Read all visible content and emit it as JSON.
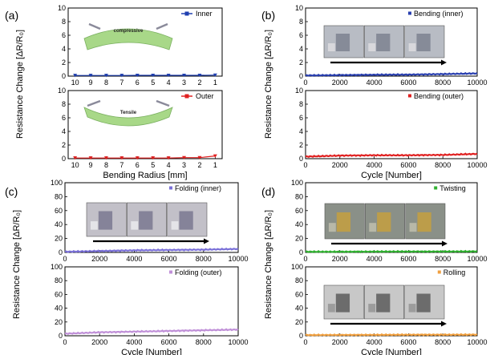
{
  "panels": [
    {
      "letter": "(a)"
    },
    {
      "letter": "(b)"
    },
    {
      "letter": "(c)"
    },
    {
      "letter": "(d)"
    }
  ],
  "inset_labels": {
    "compressive": "compressive",
    "tensile": "Tensile"
  },
  "chart_data": [
    {
      "panel": "(a)",
      "type": "line",
      "ylabel": "Resistance Change [ΔR/R₀]",
      "xlabel": "",
      "x_ticks": [
        "10",
        "9",
        "8",
        "7",
        "6",
        "5",
        "4",
        "3",
        "2",
        "1"
      ],
      "y_ticks": [
        "0",
        "2",
        "4",
        "6",
        "8",
        "10"
      ],
      "ylim": [
        0,
        10
      ],
      "series": [
        {
          "name": "Inner",
          "color": "#1f3fb0",
          "x": [
            10,
            9,
            8,
            7,
            6,
            5,
            4,
            3,
            2,
            1
          ],
          "y": [
            0.1,
            0.1,
            0.1,
            0.1,
            0.12,
            0.12,
            0.12,
            0.12,
            0.12,
            0.15
          ]
        }
      ],
      "legend": "top-right"
    },
    {
      "panel": "(a)",
      "type": "line",
      "ylabel": "",
      "xlabel": "Bending Radius [mm]",
      "x_ticks": [
        "10",
        "9",
        "8",
        "7",
        "6",
        "5",
        "4",
        "3",
        "2",
        "1"
      ],
      "y_ticks": [
        "0",
        "2",
        "4",
        "6",
        "8",
        "10"
      ],
      "ylim": [
        0,
        10
      ],
      "series": [
        {
          "name": "Outer",
          "color": "#e02020",
          "x": [
            10,
            9,
            8,
            7,
            6,
            5,
            4,
            3,
            2,
            1
          ],
          "y": [
            0.1,
            0.1,
            0.1,
            0.1,
            0.1,
            0.1,
            0.1,
            0.15,
            0.15,
            0.4
          ]
        }
      ],
      "legend": "top-right"
    },
    {
      "panel": "(b)",
      "type": "line",
      "ylabel": "Resistance Change [ΔR/R₀]",
      "xlabel": "",
      "x_ticks": [
        "0",
        "2000",
        "4000",
        "6000",
        "8000",
        "10000"
      ],
      "y_ticks": [
        "0",
        "2",
        "4",
        "6",
        "8",
        "10"
      ],
      "xlim": [
        0,
        10000
      ],
      "ylim": [
        0,
        10
      ],
      "series": [
        {
          "name": "Bending (inner)",
          "color": "#2a40b0",
          "x": [
            0,
            2000,
            4000,
            6000,
            8000,
            10000
          ],
          "y": [
            0.1,
            0.15,
            0.2,
            0.22,
            0.3,
            0.4
          ]
        }
      ],
      "legend": "top-right"
    },
    {
      "panel": "(b)",
      "type": "line",
      "ylabel": "",
      "xlabel": "Cycle [Number]",
      "x_ticks": [
        "0",
        "2000",
        "4000",
        "6000",
        "8000",
        "10000"
      ],
      "y_ticks": [
        "0",
        "2",
        "4",
        "6",
        "8",
        "10"
      ],
      "xlim": [
        0,
        10000
      ],
      "ylim": [
        0,
        10
      ],
      "series": [
        {
          "name": "Bending (outer)",
          "color": "#e02020",
          "x": [
            0,
            2000,
            4000,
            6000,
            8000,
            10000
          ],
          "y": [
            0.3,
            0.45,
            0.5,
            0.5,
            0.55,
            0.7
          ]
        }
      ],
      "legend": "top-right"
    },
    {
      "panel": "(c)",
      "type": "line",
      "ylabel": "Resistance Change [ΔR/R₀]",
      "xlabel": "",
      "x_ticks": [
        "0",
        "2000",
        "4000",
        "6000",
        "8000",
        "10000"
      ],
      "y_ticks": [
        "0",
        "20",
        "40",
        "60",
        "80",
        "100"
      ],
      "xlim": [
        0,
        10000
      ],
      "ylim": [
        0,
        100
      ],
      "series": [
        {
          "name": "Folding (inner)",
          "color": "#7a70d8",
          "x": [
            0,
            2000,
            4000,
            6000,
            8000,
            10000
          ],
          "y": [
            1,
            2,
            3,
            3.5,
            4,
            5
          ]
        }
      ],
      "legend": "top-right"
    },
    {
      "panel": "(c)",
      "type": "line",
      "ylabel": "",
      "xlabel": "Cycle [Number]",
      "x_ticks": [
        "0",
        "2000",
        "4000",
        "6000",
        "8000",
        "10000"
      ],
      "y_ticks": [
        "0",
        "20",
        "40",
        "60",
        "80",
        "100"
      ],
      "xlim": [
        0,
        10000
      ],
      "ylim": [
        0,
        100
      ],
      "series": [
        {
          "name": "Folding (outer)",
          "color": "#c090d8",
          "x": [
            0,
            2000,
            4000,
            6000,
            8000,
            10000
          ],
          "y": [
            3,
            5,
            6,
            7,
            8,
            9
          ]
        }
      ],
      "legend": "top-right"
    },
    {
      "panel": "(d)",
      "type": "line",
      "ylabel": "Resistance Change [ΔR/R₀]",
      "xlabel": "",
      "x_ticks": [
        "0",
        "2000",
        "4000",
        "6000",
        "8000",
        "10000"
      ],
      "y_ticks": [
        "0",
        "20",
        "40",
        "60",
        "80",
        "100"
      ],
      "xlim": [
        0,
        10000
      ],
      "ylim": [
        0,
        100
      ],
      "series": [
        {
          "name": "Twisting",
          "color": "#30b030",
          "x": [
            0,
            2000,
            4000,
            6000,
            8000,
            10000
          ],
          "y": [
            1,
            1,
            1.2,
            1.3,
            1.3,
            1.5
          ]
        }
      ],
      "legend": "top-right"
    },
    {
      "panel": "(d)",
      "type": "line",
      "ylabel": "",
      "xlabel": "Cycle [Number]",
      "x_ticks": [
        "0",
        "2000",
        "4000",
        "6000",
        "8000",
        "10000"
      ],
      "y_ticks": [
        "0",
        "20",
        "40",
        "60",
        "80",
        "100"
      ],
      "xlim": [
        0,
        10000
      ],
      "ylim": [
        0,
        100
      ],
      "series": [
        {
          "name": "Rolling",
          "color": "#f0a040",
          "x": [
            0,
            2000,
            4000,
            6000,
            8000,
            10000
          ],
          "y": [
            1,
            1.2,
            1.3,
            1.5,
            1.5,
            1.6
          ]
        }
      ],
      "legend": "top-right"
    }
  ]
}
